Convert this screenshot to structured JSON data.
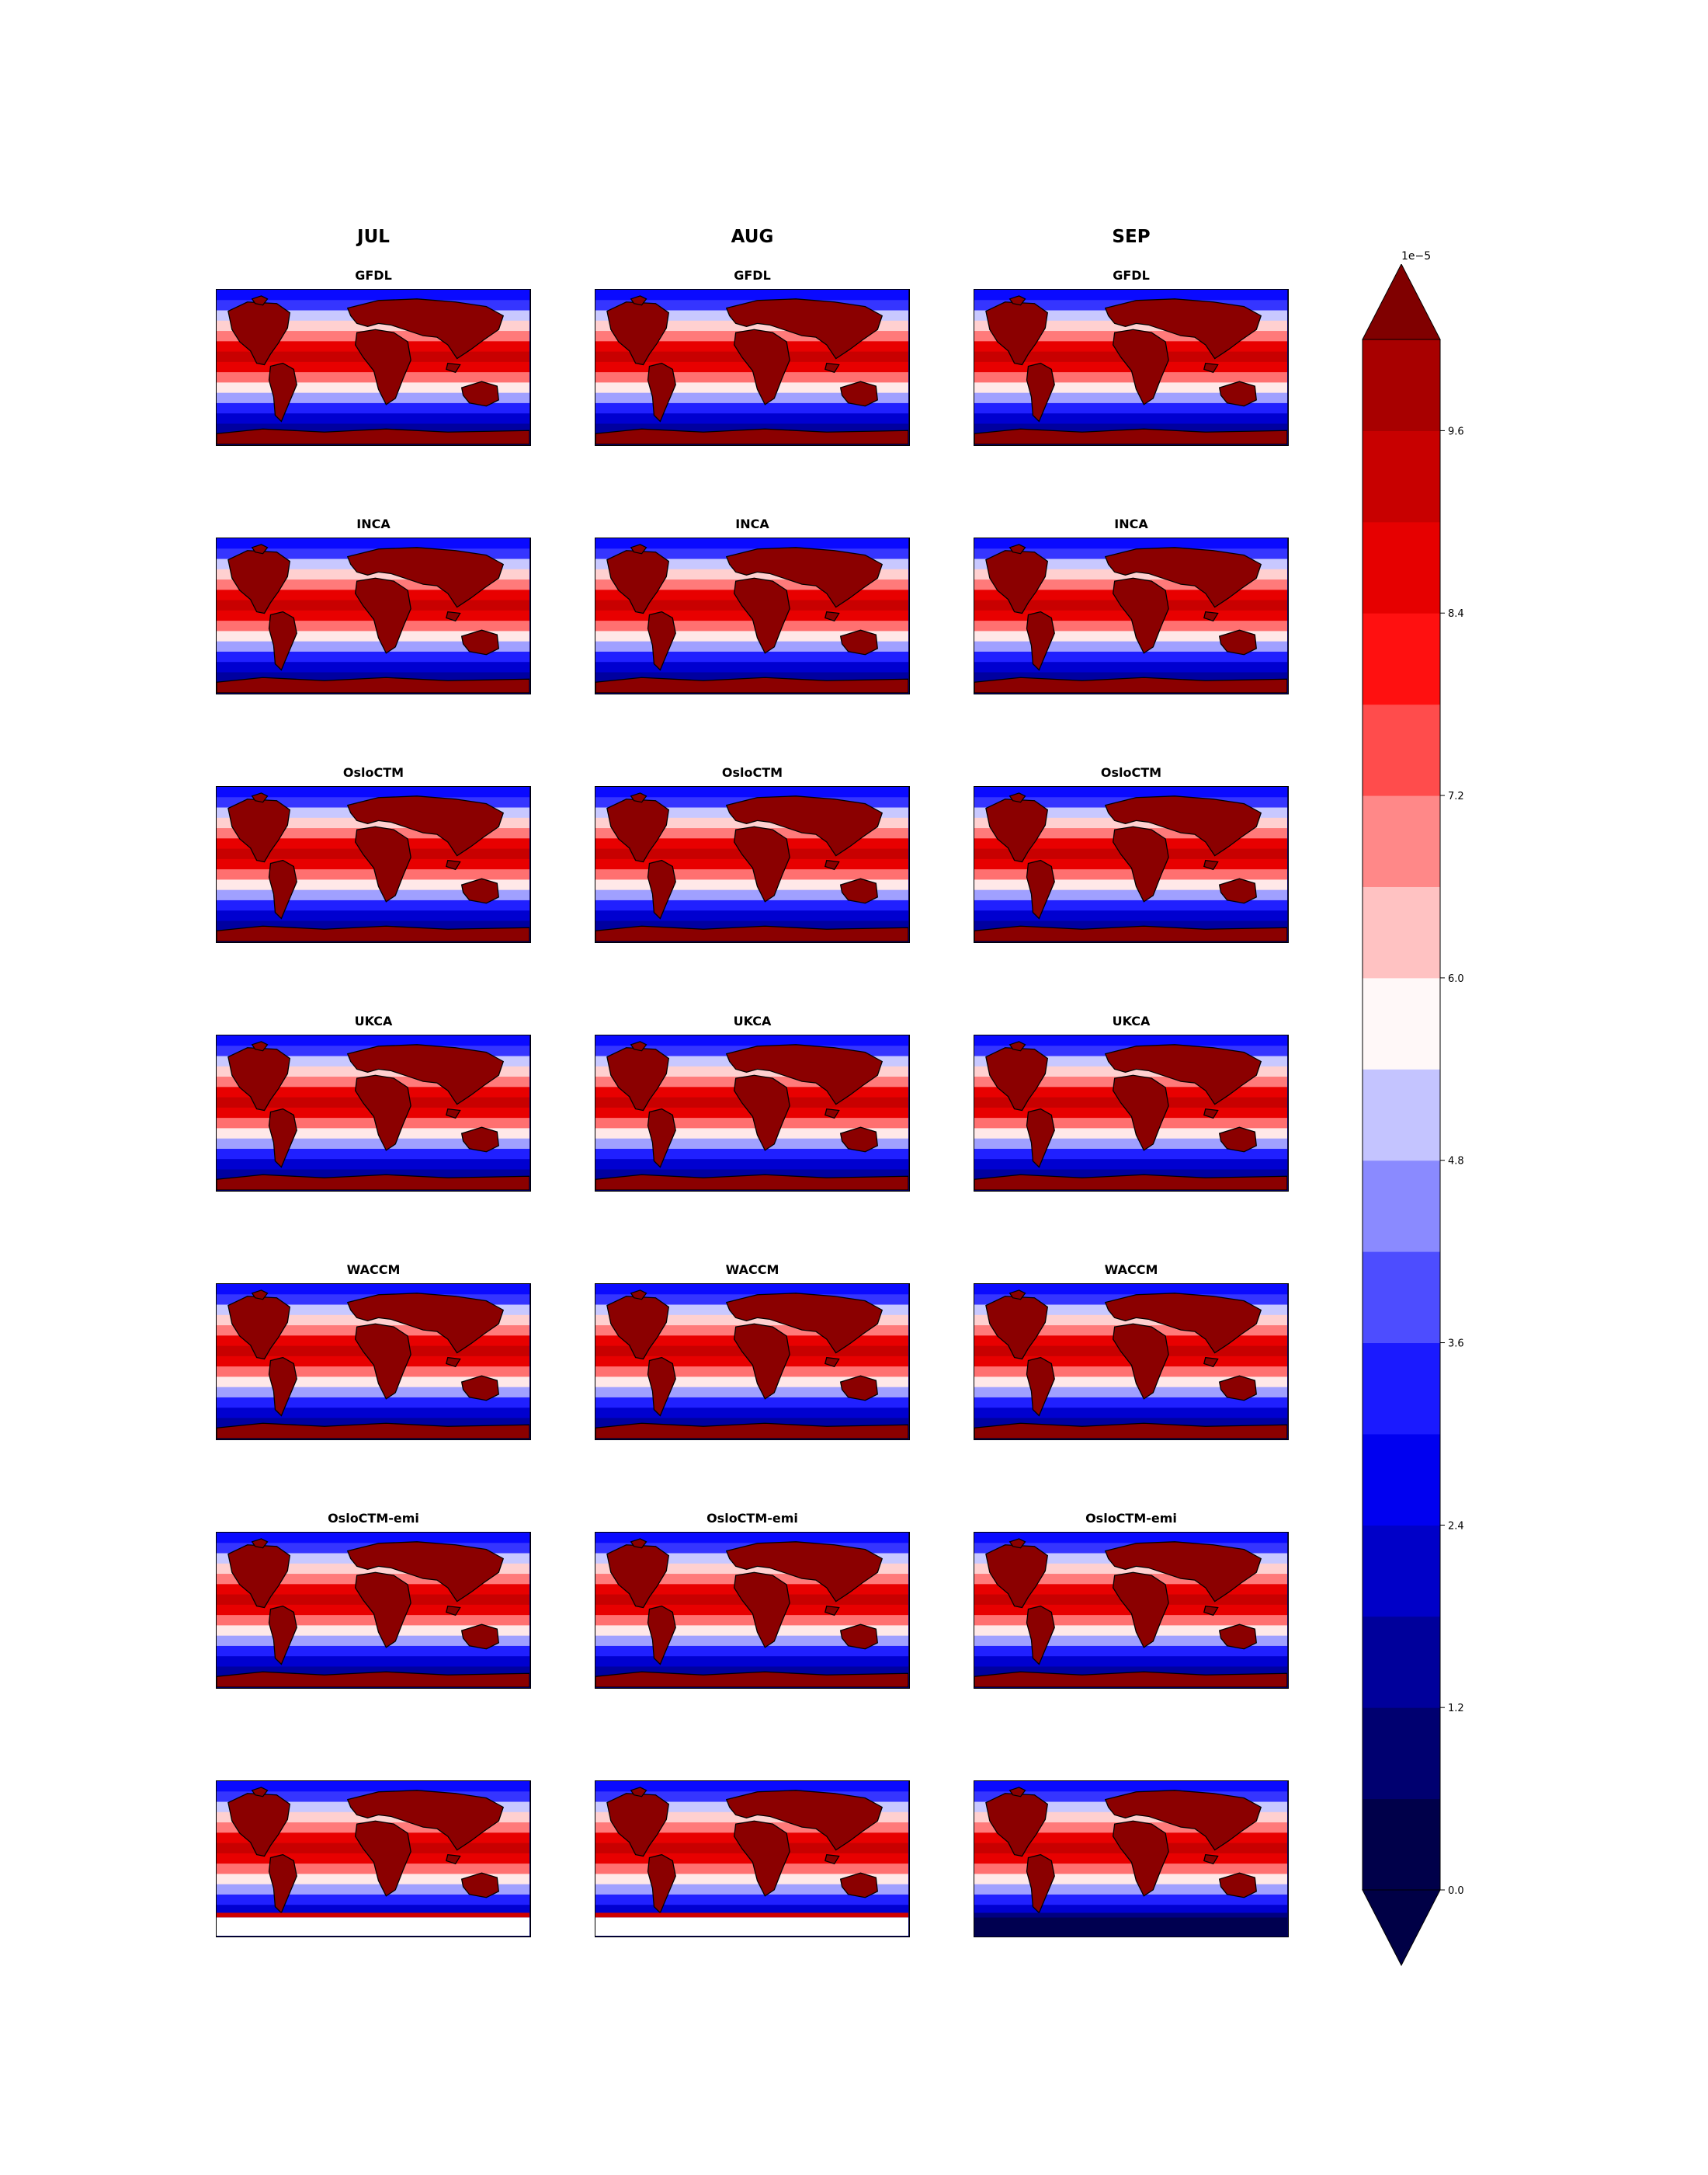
{
  "months": [
    "JUL",
    "AUG",
    "SEP"
  ],
  "models": [
    "GFDL",
    "INCA",
    "OsloCTM",
    "UKCA",
    "WACCM",
    "OsloCTM-emi",
    ""
  ],
  "colorbar": {
    "exponent_label": "1e−5",
    "ticks": [
      "0.0",
      "1.2",
      "2.4",
      "3.6",
      "4.8",
      "6.0",
      "7.2",
      "8.4",
      "9.6"
    ],
    "tick_values": [
      0.0,
      1.2,
      2.4,
      3.6,
      4.8,
      6.0,
      7.2,
      8.4,
      9.6
    ],
    "levels": [
      0.0,
      0.6,
      1.2,
      1.8,
      2.4,
      3.0,
      3.6,
      4.2,
      4.8,
      5.4,
      6.0,
      6.6,
      7.2,
      7.8,
      8.4,
      9.0,
      9.6,
      10.2
    ],
    "colors": [
      "#00004a",
      "#000070",
      "#00009b",
      "#0000c8",
      "#0000f0",
      "#1a1aff",
      "#4d4dff",
      "#8a8aff",
      "#c4c4ff",
      "#fff8f8",
      "#ffc2c2",
      "#ff8888",
      "#ff4c4c",
      "#ff1010",
      "#e60000",
      "#c80000",
      "#a80000",
      "#8b0000"
    ],
    "under_color": "#000046",
    "over_color": "#800000"
  }
}
